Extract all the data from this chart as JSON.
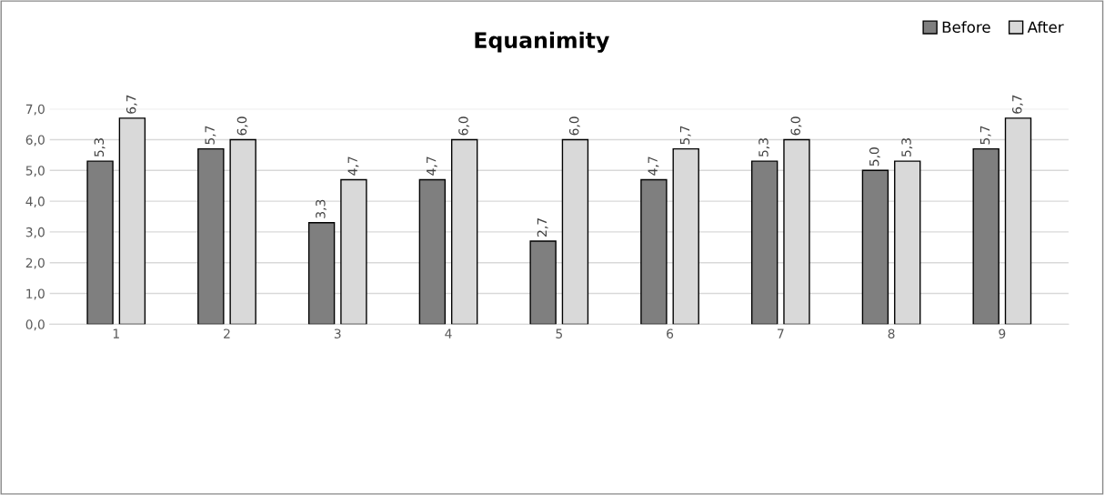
{
  "chart_data": {
    "type": "bar",
    "title": "Equanimity",
    "categories": [
      "1",
      "2",
      "3",
      "4",
      "5",
      "6",
      "7",
      "8",
      "9"
    ],
    "series": [
      {
        "name": "Before",
        "color": "#7f7f7f",
        "values": [
          5.3,
          5.7,
          3.3,
          4.7,
          2.7,
          4.7,
          5.3,
          5.0,
          5.7
        ],
        "value_labels": [
          "5,3",
          "5,7",
          "3,3",
          "4,7",
          "2,7",
          "4,7",
          "5,3",
          "5,0",
          "5,7"
        ]
      },
      {
        "name": "After",
        "color": "#d9d9d9",
        "values": [
          6.7,
          6.0,
          4.7,
          6.0,
          6.0,
          5.7,
          6.0,
          5.3,
          6.7
        ],
        "value_labels": [
          "6,7",
          "6,0",
          "4,7",
          "6,0",
          "6,0",
          "5,7",
          "6,0",
          "5,3",
          "6,7"
        ]
      }
    ],
    "ylim": [
      0,
      7
    ],
    "yticks": [
      {
        "value": 0,
        "label": "0,0"
      },
      {
        "value": 1,
        "label": "1,0"
      },
      {
        "value": 2,
        "label": "2,0"
      },
      {
        "value": 3,
        "label": "3,0"
      },
      {
        "value": 4,
        "label": "4,0"
      },
      {
        "value": 5,
        "label": "5,0"
      },
      {
        "value": 6,
        "label": "6,0"
      },
      {
        "value": 7,
        "label": "7,0"
      }
    ],
    "grid": "y",
    "legend": "top right"
  }
}
